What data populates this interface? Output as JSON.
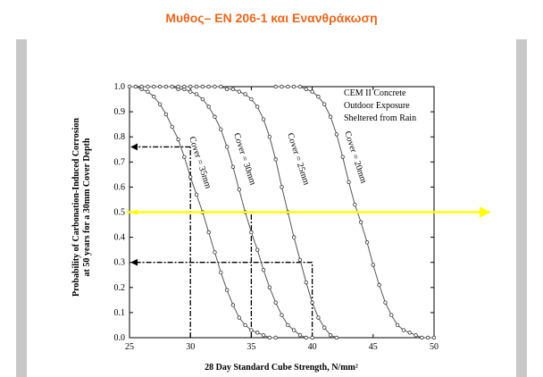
{
  "slide": {
    "title": "Μυθος– EN 206-1 και Ενανθράκωση",
    "title_color": "#e8671c",
    "panel_color": "#c8c8c8",
    "highlight_color": "#ffff00"
  },
  "chart_data": {
    "type": "line",
    "xlabel": "28 Day Standard Cube Strength, N/mm²",
    "ylabel_line1": "Probability of Carbonation-Induced Corrosion",
    "ylabel_line2": "at 50 years for a 30mm Cover Depth",
    "xlim": [
      25,
      50
    ],
    "ylim": [
      0,
      1.0
    ],
    "x_ticks": [
      25,
      30,
      35,
      40,
      45,
      50
    ],
    "y_ticks": [
      0.0,
      0.1,
      0.2,
      0.3,
      0.4,
      0.5,
      0.6,
      0.7,
      0.8,
      0.9,
      1.0
    ],
    "grid": false,
    "annotation_lines": [
      "CEM II Concrete",
      "Outdoor Exposure",
      "Sheltered from Rain"
    ],
    "series": [
      {
        "name": "Cover = 35mm",
        "x": [
          25,
          25.5,
          26,
          26.5,
          27,
          27.5,
          28,
          28.5,
          29,
          29.5,
          30,
          30.5,
          31,
          31.5,
          32,
          32.5,
          33,
          33.5,
          34,
          34.5,
          35,
          35.5,
          36,
          36.5,
          37
        ],
        "y": [
          1.0,
          1.0,
          0.99,
          0.98,
          0.96,
          0.93,
          0.89,
          0.84,
          0.79,
          0.72,
          0.64,
          0.57,
          0.5,
          0.42,
          0.34,
          0.26,
          0.19,
          0.13,
          0.08,
          0.05,
          0.03,
          0.02,
          0.01,
          0.0,
          0.0
        ]
      },
      {
        "name": "Cover = 30mm",
        "x": [
          26,
          26.5,
          27,
          27.5,
          28,
          28.5,
          29,
          29.5,
          30,
          30.5,
          31,
          31.5,
          32,
          32.5,
          33,
          33.5,
          34,
          34.5,
          35,
          35.5,
          36,
          36.5,
          37,
          37.5,
          38,
          38.5,
          39,
          39.5,
          40
        ],
        "y": [
          1.0,
          1.0,
          1.0,
          1.0,
          1.0,
          1.0,
          0.99,
          0.99,
          0.98,
          0.97,
          0.95,
          0.92,
          0.88,
          0.83,
          0.76,
          0.68,
          0.59,
          0.5,
          0.42,
          0.35,
          0.27,
          0.2,
          0.14,
          0.09,
          0.05,
          0.03,
          0.01,
          0.0,
          0.0
        ]
      },
      {
        "name": "Cover = 25mm",
        "x": [
          29,
          29.5,
          30,
          30.5,
          31,
          31.5,
          32,
          32.5,
          33,
          33.5,
          34,
          34.5,
          35,
          35.5,
          36,
          36.5,
          37,
          37.5,
          38,
          38.5,
          39,
          39.5,
          40,
          40.5,
          41,
          41.5,
          42
        ],
        "y": [
          1.0,
          1.0,
          1.0,
          1.0,
          1.0,
          1.0,
          1.0,
          1.0,
          0.99,
          0.99,
          0.98,
          0.97,
          0.95,
          0.92,
          0.87,
          0.8,
          0.71,
          0.6,
          0.5,
          0.4,
          0.31,
          0.22,
          0.14,
          0.08,
          0.04,
          0.01,
          0.0
        ]
      },
      {
        "name": "Cover = 20mm",
        "x": [
          37,
          37.5,
          38,
          38.5,
          39,
          39.5,
          40,
          40.5,
          41,
          41.5,
          42,
          42.5,
          43,
          43.5,
          44,
          44.5,
          45,
          45.5,
          46,
          46.5,
          47,
          47.5,
          48,
          48.5,
          49,
          49.5,
          50
        ],
        "y": [
          1.0,
          1.0,
          1.0,
          1.0,
          1.0,
          0.99,
          0.98,
          0.96,
          0.93,
          0.88,
          0.81,
          0.72,
          0.62,
          0.53,
          0.46,
          0.38,
          0.29,
          0.21,
          0.14,
          0.09,
          0.05,
          0.03,
          0.02,
          0.01,
          0.0,
          0.0,
          0.0
        ]
      }
    ],
    "reference_lines": [
      {
        "kind": "horizontal-arrow",
        "y": 0.76,
        "x_to": 30
      },
      {
        "kind": "vertical",
        "x": 30,
        "y_from": 0.0,
        "y_to": 0.76
      },
      {
        "kind": "vertical",
        "x": 35,
        "y_from": 0.0,
        "y_to": 0.5
      },
      {
        "kind": "vertical",
        "x": 40,
        "y_from": 0.0,
        "y_to": 0.3
      },
      {
        "kind": "horizontal-arrow",
        "y": 0.3,
        "x_to": 40
      }
    ],
    "highlight_line": {
      "y": 0.5
    }
  }
}
